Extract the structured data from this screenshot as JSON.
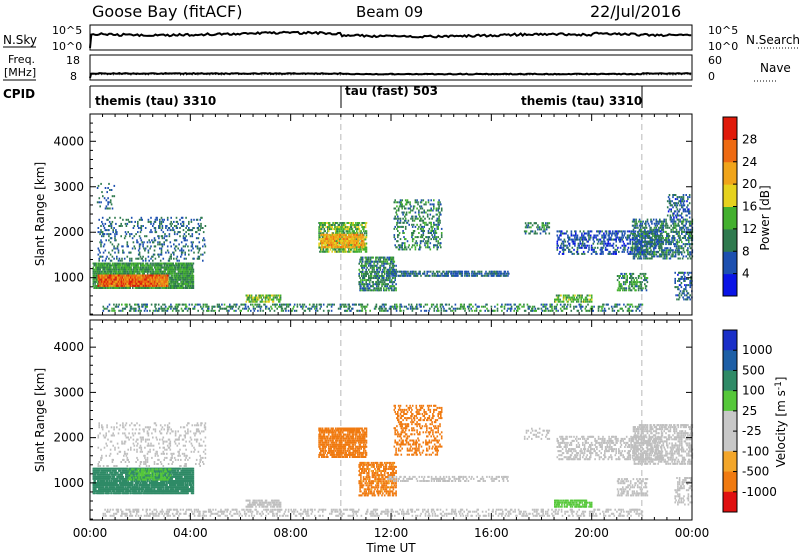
{
  "header": {
    "station": "Goose Bay (fitACF)",
    "beam": "Beam 09",
    "date": "22/Jul/2016"
  },
  "noise_panel": {
    "left_label": "N.Sky",
    "left_ticks": [
      "10^5",
      "10^0"
    ],
    "right_label": "N.Search",
    "right_ticks": [
      "10^5",
      "10^0"
    ]
  },
  "freq_panel": {
    "left_label_1": "Freq.",
    "left_label_2": "[MHz]",
    "left_ticks": [
      "18",
      "8"
    ],
    "right_label": "Nave",
    "right_ticks": [
      "60",
      "0"
    ]
  },
  "cpid_panel": {
    "label": "CPID",
    "segments": [
      {
        "text": "themis (tau) 3310"
      },
      {
        "text": "tau (fast) 503"
      },
      {
        "text": "themis (tau) 3310"
      }
    ]
  },
  "x_axis": {
    "label": "Time UT",
    "ticks": [
      "00:00",
      "04:00",
      "08:00",
      "12:00",
      "16:00",
      "20:00",
      "00:00"
    ]
  },
  "colors": {
    "power_scale": [
      "#0a14e6",
      "#1d50b0",
      "#2f7a4e",
      "#43b02e",
      "#e6d21e",
      "#f0a41a",
      "#ee6a12",
      "#e01a0a"
    ],
    "velocity_scale": [
      "#e01010",
      "#f07a10",
      "#f3a62a",
      "#c8c8c8",
      "#c8c8c8",
      "#56c83a",
      "#2f8a66",
      "#1d5fa6",
      "#1a2fc8"
    ],
    "ground_scatter": "#bfbfbf"
  },
  "chart_data": [
    {
      "type": "heatmap",
      "panel": "power",
      "ylabel": "Slant Range [km]",
      "xlim_hours": [
        0,
        24
      ],
      "ylim": [
        180,
        4600
      ],
      "yticks": [
        1000,
        2000,
        3000,
        4000
      ],
      "colorbar_label": "Power [dB]",
      "colorbar_ticks": [
        "4",
        "8",
        "12",
        "16",
        "20",
        "24",
        "28"
      ],
      "colorbar_range": [
        0,
        32
      ],
      "dashed_times_hours": [
        10.0,
        22.0
      ],
      "regions": [
        {
          "t0": 0.1,
          "t1": 4.1,
          "r0": 750,
          "r1": 1300,
          "value": 12,
          "density": 0.85
        },
        {
          "t0": 0.3,
          "t1": 3.1,
          "r0": 800,
          "r1": 1050,
          "value": 26,
          "density": 0.9
        },
        {
          "t0": 0.3,
          "t1": 4.6,
          "r0": 1350,
          "r1": 2300,
          "value": 8,
          "density": 0.18
        },
        {
          "t0": 0.2,
          "t1": 1.0,
          "r0": 2500,
          "r1": 3050,
          "value": 8,
          "density": 0.12
        },
        {
          "t0": 6.2,
          "t1": 7.6,
          "r0": 450,
          "r1": 620,
          "value": 14,
          "density": 0.6
        },
        {
          "t0": 0.5,
          "t1": 22.0,
          "r0": 250,
          "r1": 400,
          "value": 10,
          "density": 0.3
        },
        {
          "t0": 9.1,
          "t1": 11.0,
          "r0": 1550,
          "r1": 2200,
          "value": 14,
          "density": 0.6
        },
        {
          "t0": 9.2,
          "t1": 10.9,
          "r0": 1650,
          "r1": 1950,
          "value": 22,
          "density": 0.75
        },
        {
          "t0": 10.7,
          "t1": 12.2,
          "r0": 700,
          "r1": 1450,
          "value": 10,
          "density": 0.5
        },
        {
          "t0": 11.8,
          "t1": 16.7,
          "r0": 1020,
          "r1": 1120,
          "value": 8,
          "density": 0.55
        },
        {
          "t0": 12.1,
          "t1": 14.0,
          "r0": 1600,
          "r1": 2700,
          "value": 10,
          "density": 0.28
        },
        {
          "t0": 17.3,
          "t1": 18.3,
          "r0": 1950,
          "r1": 2200,
          "value": 10,
          "density": 0.3
        },
        {
          "t0": 18.5,
          "t1": 20.0,
          "r0": 450,
          "r1": 600,
          "value": 14,
          "density": 0.55
        },
        {
          "t0": 18.6,
          "t1": 22.8,
          "r0": 1500,
          "r1": 2000,
          "value": 6,
          "density": 0.35
        },
        {
          "t0": 21.6,
          "t1": 24.0,
          "r0": 1400,
          "r1": 2300,
          "value": 9,
          "density": 0.45
        },
        {
          "t0": 21.0,
          "t1": 22.2,
          "r0": 700,
          "r1": 1100,
          "value": 11,
          "density": 0.4
        },
        {
          "t0": 23.0,
          "t1": 23.9,
          "r0": 2300,
          "r1": 2800,
          "value": 7,
          "density": 0.3
        },
        {
          "t0": 23.3,
          "t1": 24.0,
          "r0": 500,
          "r1": 1100,
          "value": 7,
          "density": 0.3
        }
      ]
    },
    {
      "type": "heatmap",
      "panel": "velocity",
      "ylabel": "Slant Range [km]",
      "xlim_hours": [
        0,
        24
      ],
      "ylim": [
        180,
        4600
      ],
      "yticks": [
        1000,
        2000,
        3000,
        4000
      ],
      "colorbar_label": "Velocity [m s^-1]",
      "colorbar_ticks": [
        "1000",
        "500",
        "100",
        "25",
        "-25",
        "-100",
        "-500",
        "-1000"
      ],
      "dashed_times_hours": [
        10.0,
        22.0
      ],
      "regions": [
        {
          "t0": 0.1,
          "t1": 4.1,
          "r0": 750,
          "r1": 1300,
          "value": 300,
          "density": 0.9
        },
        {
          "t0": 1.5,
          "t1": 3.2,
          "r0": 1050,
          "r1": 1300,
          "value": 80,
          "density": 0.5
        },
        {
          "t0": 0.3,
          "t1": 4.6,
          "r0": 1350,
          "r1": 2300,
          "value": 0,
          "density": 0.15
        },
        {
          "t0": 6.2,
          "t1": 7.6,
          "r0": 450,
          "r1": 620,
          "value": 0,
          "density": 0.6
        },
        {
          "t0": 0.5,
          "t1": 22.0,
          "r0": 250,
          "r1": 400,
          "value": 0,
          "density": 0.3
        },
        {
          "t0": 9.1,
          "t1": 11.0,
          "r0": 1550,
          "r1": 2200,
          "value": -300,
          "density": 0.7
        },
        {
          "t0": 10.7,
          "t1": 12.2,
          "r0": 700,
          "r1": 1450,
          "value": -150,
          "density": 0.5
        },
        {
          "t0": 11.8,
          "t1": 16.7,
          "r0": 1020,
          "r1": 1120,
          "value": 0,
          "density": 0.3
        },
        {
          "t0": 12.1,
          "t1": 14.0,
          "r0": 1600,
          "r1": 2700,
          "value": -300,
          "density": 0.3
        },
        {
          "t0": 17.3,
          "t1": 18.3,
          "r0": 1950,
          "r1": 2200,
          "value": 0,
          "density": 0.2
        },
        {
          "t0": 18.5,
          "t1": 20.0,
          "r0": 450,
          "r1": 600,
          "value": 60,
          "density": 0.55
        },
        {
          "t0": 18.6,
          "t1": 22.8,
          "r0": 1500,
          "r1": 2000,
          "value": 0,
          "density": 0.35
        },
        {
          "t0": 21.6,
          "t1": 24.0,
          "r0": 1400,
          "r1": 2300,
          "value": 0,
          "density": 0.45
        },
        {
          "t0": 21.0,
          "t1": 22.2,
          "r0": 700,
          "r1": 1100,
          "value": 0,
          "density": 0.4
        },
        {
          "t0": 23.3,
          "t1": 24.0,
          "r0": 500,
          "r1": 1100,
          "value": 0,
          "density": 0.3
        }
      ]
    }
  ]
}
